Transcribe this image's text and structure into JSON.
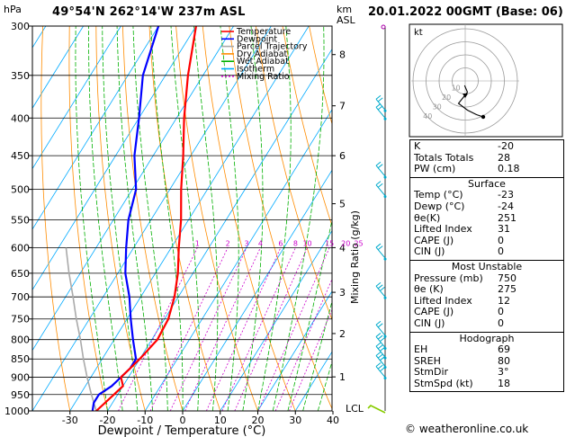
{
  "header": {
    "location": "49°54'N  262°14'W  237m  ASL",
    "valid": "20.01.2022  00GMT  (Base: 06)"
  },
  "axes": {
    "p_label": "hPa",
    "km_label": "km\nASL",
    "mix_label": "Mixing Ratio (g/kg)",
    "x_label": "Dewpoint / Temperature (°C)",
    "lcl_label": "LCL"
  },
  "legend": [
    {
      "label": "Temperature",
      "color": "#ff0000",
      "dash": ""
    },
    {
      "label": "Dewpoint",
      "color": "#0000ff",
      "dash": ""
    },
    {
      "label": "Parcel Trajectory",
      "color": "#aaaaaa",
      "dash": ""
    },
    {
      "label": "Dry Adiabat",
      "color": "#ff8c00",
      "dash": ""
    },
    {
      "label": "Wet Adiabat",
      "color": "#00b000",
      "dash": ""
    },
    {
      "label": "Isotherm",
      "color": "#00aaff",
      "dash": ""
    },
    {
      "label": "Mixing Ratio",
      "color": "#cc00cc",
      "dash": "2,2"
    }
  ],
  "chart_data": {
    "type": "skew-t",
    "pressure_levels": [
      300,
      350,
      400,
      450,
      500,
      550,
      600,
      650,
      700,
      750,
      800,
      850,
      900,
      950,
      1000
    ],
    "temperature_ticks": [
      -30,
      -20,
      -10,
      0,
      10,
      20,
      30,
      40
    ],
    "xlim": [
      -40,
      40
    ],
    "ylim": [
      1000,
      300
    ],
    "km_ticks": [
      {
        "label": "1",
        "p": 899
      },
      {
        "label": "2",
        "p": 785
      },
      {
        "label": "3",
        "p": 690
      },
      {
        "label": "4",
        "p": 600
      },
      {
        "label": "5",
        "p": 523
      },
      {
        "label": "6",
        "p": 450
      },
      {
        "label": "7",
        "p": 385
      },
      {
        "label": "8",
        "p": 328
      }
    ],
    "mixing_ratio_values": [
      "1",
      "2",
      "3",
      "4",
      "6",
      "8",
      "10",
      "15",
      "20",
      "25"
    ],
    "temperature": [
      {
        "p": 1000,
        "t": -23
      },
      {
        "p": 975,
        "t": -22
      },
      {
        "p": 950,
        "t": -21
      },
      {
        "p": 925,
        "t": -20
      },
      {
        "p": 900,
        "t": -22
      },
      {
        "p": 875,
        "t": -21
      },
      {
        "p": 850,
        "t": -20
      },
      {
        "p": 800,
        "t": -18.5
      },
      {
        "p": 750,
        "t": -19
      },
      {
        "p": 700,
        "t": -21
      },
      {
        "p": 650,
        "t": -24
      },
      {
        "p": 600,
        "t": -28
      },
      {
        "p": 550,
        "t": -32
      },
      {
        "p": 500,
        "t": -37
      },
      {
        "p": 450,
        "t": -42
      },
      {
        "p": 400,
        "t": -48
      },
      {
        "p": 350,
        "t": -54
      },
      {
        "p": 300,
        "t": -60
      }
    ],
    "dewpoint": [
      {
        "p": 1000,
        "t": -24
      },
      {
        "p": 975,
        "t": -25
      },
      {
        "p": 950,
        "t": -25
      },
      {
        "p": 925,
        "t": -23
      },
      {
        "p": 900,
        "t": -22
      },
      {
        "p": 875,
        "t": -21
      },
      {
        "p": 850,
        "t": -21
      },
      {
        "p": 800,
        "t": -25
      },
      {
        "p": 750,
        "t": -29
      },
      {
        "p": 700,
        "t": -33
      },
      {
        "p": 650,
        "t": -38
      },
      {
        "p": 600,
        "t": -42
      },
      {
        "p": 550,
        "t": -46
      },
      {
        "p": 500,
        "t": -49
      },
      {
        "p": 450,
        "t": -55
      },
      {
        "p": 400,
        "t": -60
      },
      {
        "p": 350,
        "t": -66
      },
      {
        "p": 300,
        "t": -70
      }
    ],
    "parcel": [
      {
        "p": 1000,
        "t": -23
      },
      {
        "p": 950,
        "t": -27
      },
      {
        "p": 900,
        "t": -31
      },
      {
        "p": 850,
        "t": -35
      },
      {
        "p": 800,
        "t": -39
      },
      {
        "p": 750,
        "t": -43.5
      },
      {
        "p": 700,
        "t": -48
      },
      {
        "p": 650,
        "t": -53
      },
      {
        "p": 600,
        "t": -58
      }
    ],
    "hodograph": {
      "label": "kt",
      "ring_labels": [
        "10",
        "20",
        "30",
        "40"
      ],
      "points": [
        [
          -0.3,
          -2
        ],
        [
          1,
          -5
        ],
        [
          -3,
          -10
        ],
        [
          1,
          -13
        ],
        [
          3,
          -14
        ],
        [
          5,
          -15
        ],
        [
          8,
          -16
        ]
      ]
    }
  },
  "indices": {
    "top": [
      {
        "k": "K",
        "v": "-20"
      },
      {
        "k": "Totals Totals",
        "v": "28"
      },
      {
        "k": "PW (cm)",
        "v": "0.18"
      }
    ],
    "surface": {
      "title": "Surface",
      "rows": [
        {
          "k": "Temp (°C)",
          "v": "-23"
        },
        {
          "k": "Dewp (°C)",
          "v": "-24"
        },
        {
          "k": "θe(K)",
          "v": "251"
        },
        {
          "k": "Lifted Index",
          "v": "31"
        },
        {
          "k": "CAPE (J)",
          "v": "0"
        },
        {
          "k": "CIN (J)",
          "v": "0"
        }
      ]
    },
    "unstable": {
      "title": "Most Unstable",
      "rows": [
        {
          "k": "Pressure (mb)",
          "v": "750"
        },
        {
          "k": "θe (K)",
          "v": "275"
        },
        {
          "k": "Lifted Index",
          "v": "12"
        },
        {
          "k": "CAPE (J)",
          "v": "0"
        },
        {
          "k": "CIN (J)",
          "v": "0"
        }
      ]
    },
    "hodograph": {
      "title": "Hodograph",
      "rows": [
        {
          "k": "EH",
          "v": "69"
        },
        {
          "k": "SREH",
          "v": "80"
        },
        {
          "k": "StmDir",
          "v": "3°"
        },
        {
          "k": "StmSpd (kt)",
          "v": "18"
        }
      ]
    }
  },
  "footer": "© weatheronline.co.uk",
  "colors": {
    "temperature": "#ff0000",
    "dewpoint": "#0000ff",
    "parcel": "#aaaaaa",
    "dry_adiabat": "#ff8c00",
    "wet_adiabat": "#00b000",
    "isotherm": "#00aaff",
    "mixing_ratio": "#cc00cc",
    "wind": "#00aacc",
    "surface_wind": "#88cc00"
  }
}
